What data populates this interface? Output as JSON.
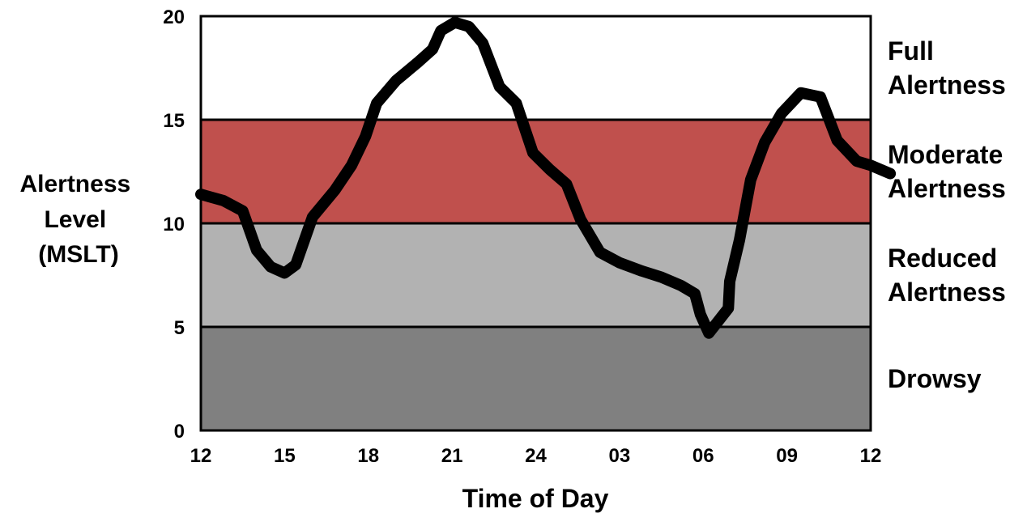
{
  "chart_data": {
    "type": "line",
    "title": "",
    "xlabel": "Time of Day",
    "ylabel_lines": [
      "Alertness",
      "Level",
      "(MSLT)"
    ],
    "ylim": [
      0,
      20
    ],
    "yticks": [
      "0",
      "5",
      "10",
      "15",
      "20"
    ],
    "xticks": [
      "12",
      "15",
      "18",
      "21",
      "24",
      "03",
      "06",
      "09",
      "12"
    ],
    "x_unit": "hours elapsed from 12:00",
    "grid": false,
    "bands": [
      {
        "from": 0,
        "to": 5,
        "color": "#808080",
        "label_lines": [
          "Drowsy"
        ]
      },
      {
        "from": 5,
        "to": 10,
        "color": "#b2b2b2",
        "label_lines": [
          "Reduced",
          "Alertness"
        ]
      },
      {
        "from": 10,
        "to": 15,
        "color": "#c0504d",
        "label_lines": [
          "Moderate",
          "Alertness"
        ]
      },
      {
        "from": 15,
        "to": 20,
        "color": "#ffffff",
        "label_lines": [
          "Full",
          "Alertness"
        ]
      }
    ],
    "series": [
      {
        "color": "#000000",
        "points": [
          [
            0,
            11.4
          ],
          [
            0.8,
            11.1
          ],
          [
            1.5,
            10.6
          ],
          [
            2.0,
            8.7
          ],
          [
            2.5,
            7.9
          ],
          [
            3.0,
            7.6
          ],
          [
            3.4,
            8.0
          ],
          [
            4.0,
            10.3
          ],
          [
            4.8,
            11.6
          ],
          [
            5.4,
            12.8
          ],
          [
            5.9,
            14.2
          ],
          [
            6.3,
            15.8
          ],
          [
            7.0,
            16.9
          ],
          [
            7.8,
            17.8
          ],
          [
            8.3,
            18.4
          ],
          [
            8.6,
            19.3
          ],
          [
            9.1,
            19.7
          ],
          [
            9.6,
            19.5
          ],
          [
            10.1,
            18.7
          ],
          [
            10.7,
            16.6
          ],
          [
            11.3,
            15.8
          ],
          [
            11.9,
            13.4
          ],
          [
            12.5,
            12.6
          ],
          [
            13.1,
            11.9
          ],
          [
            13.6,
            10.2
          ],
          [
            14.3,
            8.6
          ],
          [
            15.0,
            8.1
          ],
          [
            15.8,
            7.7
          ],
          [
            16.5,
            7.4
          ],
          [
            17.2,
            7.0
          ],
          [
            17.7,
            6.6
          ],
          [
            17.9,
            5.6
          ],
          [
            18.2,
            4.7
          ],
          [
            18.9,
            5.9
          ],
          [
            18.95,
            7.2
          ],
          [
            19.3,
            9.2
          ],
          [
            19.7,
            12.1
          ],
          [
            20.2,
            13.9
          ],
          [
            20.8,
            15.3
          ],
          [
            21.5,
            16.3
          ],
          [
            22.2,
            16.1
          ],
          [
            22.8,
            14.0
          ],
          [
            23.5,
            13.0
          ],
          [
            24.0,
            12.8
          ],
          [
            24.7,
            12.4
          ]
        ]
      }
    ]
  }
}
